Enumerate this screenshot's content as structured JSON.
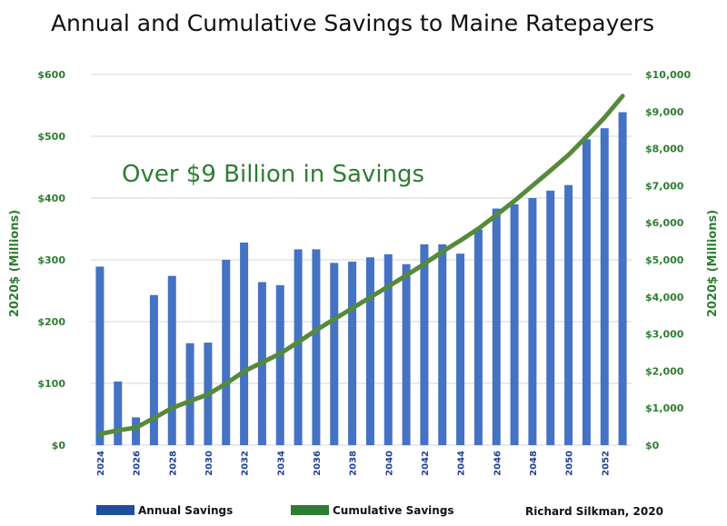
{
  "chart_data": {
    "type": "bar",
    "title": "Annual and Cumulative Savings to Maine Ratepayers",
    "annotation": "Over $9 Billion in Savings",
    "credit": "Richard Silkman, 2020",
    "ylabel_left": "2020$ (Millions)",
    "ylabel_right": "2020$ (Millions)",
    "ylim_left": [
      0,
      600
    ],
    "ylim_right": [
      0,
      10000
    ],
    "yticks_left": [
      "$0",
      "$100",
      "$200",
      "$300",
      "$400",
      "$500",
      "$600"
    ],
    "yticks_right": [
      "$0",
      "$1,000",
      "$2,000",
      "$3,000",
      "$4,000",
      "$5,000",
      "$6,000",
      "$7,000",
      "$8,000",
      "$9,000",
      "$10,000"
    ],
    "grid": true,
    "legend_position": "bottom",
    "categories": [
      "2024",
      "2025",
      "2026",
      "2027",
      "2028",
      "2029",
      "2030",
      "2031",
      "2032",
      "2033",
      "2034",
      "2035",
      "2036",
      "2037",
      "2038",
      "2039",
      "2040",
      "2041",
      "2042",
      "2043",
      "2044",
      "2045",
      "2046",
      "2047",
      "2048",
      "2049",
      "2050",
      "2051",
      "2052",
      "2053"
    ],
    "xtick_labels": [
      "2024",
      "2026",
      "2028",
      "2030",
      "2032",
      "2034",
      "2036",
      "2038",
      "2040",
      "2042",
      "2044",
      "2046",
      "2048",
      "2050",
      "2052"
    ],
    "series": [
      {
        "name": "Annual Savings",
        "type": "bar",
        "axis": "left",
        "color": "#4472c4",
        "legend_color": "#1f4e9c",
        "values": [
          289,
          103,
          45,
          243,
          274,
          165,
          166,
          300,
          328,
          264,
          259,
          317,
          317,
          295,
          297,
          304,
          309,
          293,
          325,
          325,
          310,
          349,
          383,
          390,
          400,
          412,
          421,
          495,
          513,
          539
        ]
      },
      {
        "name": "Cumulative Savings",
        "type": "line",
        "axis": "right",
        "color": "#568a3a",
        "legend_color": "#2e7d32",
        "values": [
          300,
          400,
          470,
          730,
          1000,
          1190,
          1370,
          1660,
          1990,
          2230,
          2470,
          2780,
          3100,
          3400,
          3690,
          3990,
          4280,
          4580,
          4890,
          5220,
          5520,
          5840,
          6210,
          6590,
          7000,
          7410,
          7830,
          8320,
          8840,
          9420
        ]
      }
    ]
  }
}
